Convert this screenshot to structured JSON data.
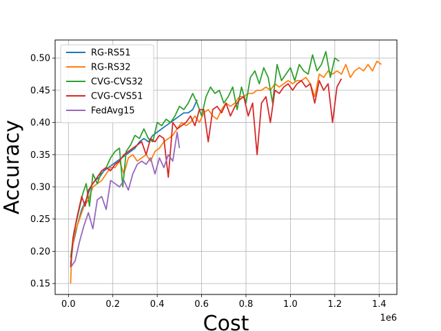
{
  "chart_data": {
    "type": "line",
    "title": "",
    "xlabel": "Cost",
    "ylabel": "Accuracy",
    "x_offset_label": "1e6",
    "xlim": [
      -0.06,
      1.48
    ],
    "ylim": [
      0.133,
      0.528
    ],
    "xticks": [
      0.0,
      0.2,
      0.4,
      0.6,
      0.8,
      1.0,
      1.2,
      1.4
    ],
    "xtick_labels": [
      "0.0",
      "0.2",
      "0.4",
      "0.6",
      "0.8",
      "1.0",
      "1.2",
      "1.4"
    ],
    "yticks": [
      0.15,
      0.2,
      0.25,
      0.3,
      0.35,
      0.4,
      0.45,
      0.5
    ],
    "ytick_labels": [
      "0.15",
      "0.20",
      "0.25",
      "0.30",
      "0.35",
      "0.40",
      "0.45",
      "0.50"
    ],
    "grid": true,
    "legend_position": "top-left",
    "series": [
      {
        "name": "RG-RS51",
        "color": "#1f77b4",
        "x": [
          0.01,
          0.02,
          0.04,
          0.06,
          0.08,
          0.1,
          0.12,
          0.14,
          0.16,
          0.18,
          0.2,
          0.22,
          0.24,
          0.26,
          0.28,
          0.3,
          0.32,
          0.34,
          0.36,
          0.38,
          0.4,
          0.42,
          0.44,
          0.46,
          0.48,
          0.5,
          0.52,
          0.54,
          0.56,
          0.58
        ],
        "y": [
          0.18,
          0.21,
          0.24,
          0.265,
          0.28,
          0.3,
          0.31,
          0.315,
          0.325,
          0.33,
          0.335,
          0.34,
          0.345,
          0.35,
          0.355,
          0.36,
          0.37,
          0.375,
          0.37,
          0.38,
          0.385,
          0.39,
          0.395,
          0.4,
          0.405,
          0.41,
          0.415,
          0.415,
          0.42,
          0.435
        ]
      },
      {
        "name": "RG-RS32",
        "color": "#ff7f0e",
        "x": [
          0.01,
          0.015,
          0.03,
          0.05,
          0.07,
          0.09,
          0.11,
          0.13,
          0.15,
          0.17,
          0.19,
          0.21,
          0.23,
          0.25,
          0.27,
          0.29,
          0.31,
          0.33,
          0.35,
          0.37,
          0.39,
          0.41,
          0.43,
          0.45,
          0.47,
          0.49,
          0.51,
          0.53,
          0.55,
          0.57,
          0.59,
          0.61,
          0.63,
          0.65,
          0.67,
          0.69,
          0.71,
          0.73,
          0.75,
          0.77,
          0.79,
          0.81,
          0.83,
          0.85,
          0.87,
          0.89,
          0.91,
          0.93,
          0.95,
          0.97,
          0.99,
          1.01,
          1.03,
          1.05,
          1.07,
          1.09,
          1.11,
          1.13,
          1.15,
          1.17,
          1.19,
          1.21,
          1.23,
          1.25,
          1.27,
          1.29,
          1.31,
          1.33,
          1.35,
          1.37,
          1.39,
          1.41
        ],
        "y": [
          0.15,
          0.2,
          0.23,
          0.25,
          0.27,
          0.28,
          0.3,
          0.305,
          0.31,
          0.32,
          0.33,
          0.33,
          0.34,
          0.32,
          0.345,
          0.35,
          0.34,
          0.345,
          0.35,
          0.34,
          0.355,
          0.36,
          0.37,
          0.375,
          0.38,
          0.39,
          0.4,
          0.395,
          0.4,
          0.41,
          0.4,
          0.415,
          0.42,
          0.41,
          0.405,
          0.42,
          0.43,
          0.425,
          0.43,
          0.44,
          0.44,
          0.445,
          0.445,
          0.45,
          0.45,
          0.455,
          0.45,
          0.46,
          0.455,
          0.46,
          0.465,
          0.46,
          0.465,
          0.465,
          0.47,
          0.46,
          0.44,
          0.475,
          0.47,
          0.48,
          0.475,
          0.48,
          0.475,
          0.49,
          0.47,
          0.48,
          0.485,
          0.48,
          0.49,
          0.48,
          0.495,
          0.49
        ]
      },
      {
        "name": "CVG-CVS32",
        "color": "#2ca02c",
        "x": [
          0.01,
          0.025,
          0.045,
          0.065,
          0.08,
          0.095,
          0.11,
          0.13,
          0.15,
          0.17,
          0.19,
          0.21,
          0.23,
          0.245,
          0.26,
          0.28,
          0.3,
          0.32,
          0.34,
          0.36,
          0.38,
          0.4,
          0.42,
          0.44,
          0.46,
          0.48,
          0.5,
          0.52,
          0.54,
          0.56,
          0.58,
          0.6,
          0.62,
          0.64,
          0.66,
          0.68,
          0.7,
          0.72,
          0.74,
          0.76,
          0.78,
          0.8,
          0.82,
          0.84,
          0.86,
          0.88,
          0.9,
          0.92,
          0.94,
          0.96,
          0.98,
          1.0,
          1.02,
          1.04,
          1.06,
          1.08,
          1.1,
          1.12,
          1.14,
          1.16,
          1.18,
          1.2,
          1.22
        ],
        "y": [
          0.19,
          0.23,
          0.26,
          0.29,
          0.305,
          0.27,
          0.32,
          0.305,
          0.325,
          0.33,
          0.345,
          0.355,
          0.36,
          0.3,
          0.355,
          0.365,
          0.38,
          0.375,
          0.39,
          0.375,
          0.37,
          0.4,
          0.395,
          0.405,
          0.4,
          0.41,
          0.425,
          0.42,
          0.43,
          0.445,
          0.43,
          0.41,
          0.44,
          0.455,
          0.445,
          0.45,
          0.43,
          0.44,
          0.455,
          0.42,
          0.455,
          0.43,
          0.47,
          0.48,
          0.46,
          0.485,
          0.47,
          0.43,
          0.49,
          0.465,
          0.475,
          0.485,
          0.465,
          0.49,
          0.48,
          0.475,
          0.505,
          0.48,
          0.49,
          0.51,
          0.47,
          0.5,
          0.495
        ]
      },
      {
        "name": "CVG-CVS51",
        "color": "#d62728",
        "x": [
          0.01,
          0.02,
          0.04,
          0.06,
          0.075,
          0.09,
          0.11,
          0.13,
          0.15,
          0.17,
          0.19,
          0.21,
          0.23,
          0.25,
          0.27,
          0.29,
          0.31,
          0.33,
          0.35,
          0.37,
          0.39,
          0.41,
          0.43,
          0.45,
          0.47,
          0.49,
          0.51,
          0.53,
          0.55,
          0.57,
          0.59,
          0.61,
          0.63,
          0.65,
          0.67,
          0.69,
          0.71,
          0.73,
          0.75,
          0.77,
          0.79,
          0.81,
          0.83,
          0.85,
          0.87,
          0.89,
          0.91,
          0.93,
          0.95,
          0.97,
          0.99,
          1.01,
          1.03,
          1.05,
          1.07,
          1.09,
          1.11,
          1.13,
          1.15,
          1.17,
          1.19,
          1.21,
          1.23
        ],
        "y": [
          0.175,
          0.22,
          0.255,
          0.285,
          0.27,
          0.295,
          0.305,
          0.315,
          0.325,
          0.33,
          0.325,
          0.335,
          0.34,
          0.35,
          0.355,
          0.36,
          0.365,
          0.37,
          0.35,
          0.375,
          0.37,
          0.38,
          0.375,
          0.315,
          0.4,
          0.39,
          0.395,
          0.4,
          0.41,
          0.395,
          0.42,
          0.42,
          0.37,
          0.42,
          0.425,
          0.415,
          0.43,
          0.41,
          0.425,
          0.435,
          0.44,
          0.41,
          0.43,
          0.35,
          0.43,
          0.44,
          0.4,
          0.45,
          0.445,
          0.455,
          0.46,
          0.45,
          0.46,
          0.465,
          0.455,
          0.46,
          0.43,
          0.465,
          0.45,
          0.46,
          0.4,
          0.455,
          0.468
        ]
      },
      {
        "name": "FedAvg15",
        "color": "#9467bd",
        "x": [
          0.01,
          0.03,
          0.05,
          0.07,
          0.09,
          0.11,
          0.13,
          0.15,
          0.17,
          0.19,
          0.21,
          0.23,
          0.25,
          0.27,
          0.29,
          0.31,
          0.33,
          0.35,
          0.37,
          0.39,
          0.41,
          0.43,
          0.45,
          0.47,
          0.49,
          0.5
        ],
        "y": [
          0.175,
          0.185,
          0.215,
          0.24,
          0.26,
          0.235,
          0.28,
          0.285,
          0.265,
          0.31,
          0.305,
          0.3,
          0.31,
          0.295,
          0.32,
          0.335,
          0.34,
          0.335,
          0.345,
          0.32,
          0.345,
          0.33,
          0.35,
          0.34,
          0.385,
          0.36
        ]
      }
    ]
  }
}
